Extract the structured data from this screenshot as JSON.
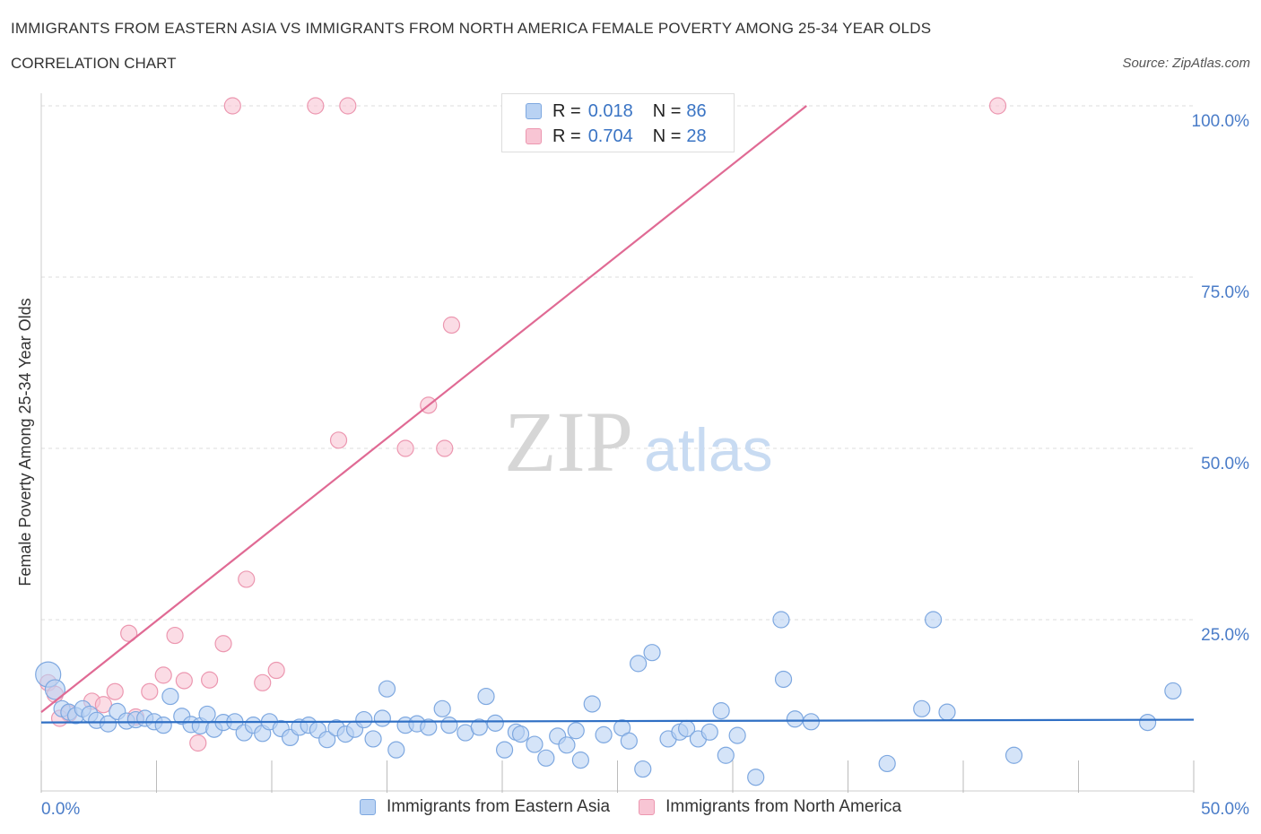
{
  "header": {
    "title": "IMMIGRANTS FROM EASTERN ASIA VS IMMIGRANTS FROM NORTH AMERICA FEMALE POVERTY AMONG 25-34 YEAR OLDS",
    "subtitle": "CORRELATION CHART",
    "source": "Source: ZipAtlas.com"
  },
  "watermark": {
    "zip": "ZIP",
    "atlas": "atlas"
  },
  "colors": {
    "blue_fill": "#b9d2f3",
    "blue_stroke": "#7ea8e0",
    "blue_line": "#2f6fc4",
    "pink_fill": "#f8c5d4",
    "pink_stroke": "#ec97b0",
    "pink_line": "#e06a94",
    "axis_text": "#4a7cc8",
    "grid": "#dddddd"
  },
  "legend": {
    "rows": [
      {
        "r_label": "R = ",
        "r_value": "0.018",
        "n_label": "N = ",
        "n_value": "86"
      },
      {
        "r_label": "R = ",
        "r_value": "0.704",
        "n_label": "N = ",
        "n_value": "28"
      }
    ]
  },
  "bottom_legend": {
    "items": [
      "Immigrants from Eastern Asia",
      "Immigrants from North America"
    ]
  },
  "chart_data": {
    "type": "scatter",
    "xlabel": "",
    "ylabel": "Female Poverty Among 25-34 Year Olds",
    "x_tick_labels": [
      "0.0%",
      "50.0%"
    ],
    "y_tick_labels": [
      "100.0%",
      "75.0%",
      "50.0%",
      "25.0%"
    ],
    "y_ticks": [
      100,
      75,
      50,
      25
    ],
    "xlim": [
      0,
      50
    ],
    "ylim": [
      0,
      100
    ],
    "grid": true,
    "legend_position": "top-center",
    "series": [
      {
        "name": "Immigrants from Eastern Asia",
        "trend": {
          "x": [
            0,
            50
          ],
          "y": [
            10.0,
            10.4
          ]
        },
        "points": [
          [
            0.3,
            17.0,
            14
          ],
          [
            0.6,
            14.8,
            11
          ],
          [
            0.9,
            12.0,
            9
          ],
          [
            1.2,
            11.5,
            9
          ],
          [
            1.5,
            11.0,
            9
          ],
          [
            1.8,
            12.0,
            9
          ],
          [
            2.1,
            11.2,
            9
          ],
          [
            2.4,
            10.3,
            9
          ],
          [
            2.9,
            9.8,
            9
          ],
          [
            3.3,
            11.6,
            9
          ],
          [
            3.7,
            10.2,
            9
          ],
          [
            4.1,
            10.4,
            9
          ],
          [
            4.5,
            10.6,
            9
          ],
          [
            4.9,
            10.1,
            9
          ],
          [
            5.3,
            9.6,
            9
          ],
          [
            5.6,
            13.8,
            9
          ],
          [
            6.1,
            10.9,
            9
          ],
          [
            6.5,
            9.7,
            9
          ],
          [
            6.9,
            9.5,
            9
          ],
          [
            7.2,
            11.2,
            9
          ],
          [
            7.5,
            9.0,
            9
          ],
          [
            7.9,
            10.0,
            9
          ],
          [
            8.4,
            10.1,
            9
          ],
          [
            8.8,
            8.5,
            9
          ],
          [
            9.2,
            9.6,
            9
          ],
          [
            9.6,
            8.4,
            9
          ],
          [
            9.9,
            10.1,
            9
          ],
          [
            10.4,
            9.1,
            9
          ],
          [
            10.8,
            7.8,
            9
          ],
          [
            11.2,
            9.3,
            9
          ],
          [
            11.6,
            9.6,
            9
          ],
          [
            12.0,
            8.9,
            9
          ],
          [
            12.4,
            7.5,
            9
          ],
          [
            12.8,
            9.2,
            9
          ],
          [
            13.2,
            8.3,
            9
          ],
          [
            13.6,
            9.0,
            9
          ],
          [
            14.0,
            10.4,
            9
          ],
          [
            14.4,
            7.6,
            9
          ],
          [
            14.8,
            10.6,
            9
          ],
          [
            15.0,
            14.9,
            9
          ],
          [
            15.4,
            6.0,
            9
          ],
          [
            15.8,
            9.6,
            9
          ],
          [
            16.3,
            9.8,
            9
          ],
          [
            16.8,
            9.3,
            9
          ],
          [
            17.4,
            12.0,
            9
          ],
          [
            17.7,
            9.6,
            9
          ],
          [
            18.4,
            8.5,
            9
          ],
          [
            19.0,
            9.3,
            9
          ],
          [
            19.3,
            13.8,
            9
          ],
          [
            19.7,
            9.9,
            9
          ],
          [
            20.1,
            6.0,
            9
          ],
          [
            20.6,
            8.6,
            9
          ],
          [
            20.8,
            8.3,
            9
          ],
          [
            21.4,
            6.8,
            9
          ],
          [
            21.9,
            4.8,
            9
          ],
          [
            22.4,
            8.0,
            9
          ],
          [
            22.8,
            6.7,
            9
          ],
          [
            23.2,
            8.8,
            9
          ],
          [
            23.4,
            4.5,
            9
          ],
          [
            23.9,
            12.7,
            9
          ],
          [
            24.4,
            8.2,
            9
          ],
          [
            25.2,
            9.2,
            9
          ],
          [
            25.5,
            7.3,
            9
          ],
          [
            25.9,
            18.6,
            9
          ],
          [
            26.1,
            3.2,
            9
          ],
          [
            26.5,
            20.2,
            9
          ],
          [
            27.2,
            7.6,
            9
          ],
          [
            27.7,
            8.6,
            9
          ],
          [
            28.0,
            9.1,
            9
          ],
          [
            28.5,
            7.6,
            9
          ],
          [
            29.0,
            8.6,
            9
          ],
          [
            29.5,
            11.7,
            9
          ],
          [
            29.7,
            5.2,
            9
          ],
          [
            30.2,
            8.1,
            9
          ],
          [
            31.0,
            2.0,
            9
          ],
          [
            32.1,
            25.0,
            9
          ],
          [
            32.2,
            16.3,
            9
          ],
          [
            32.7,
            10.5,
            9
          ],
          [
            33.4,
            10.1,
            9
          ],
          [
            36.7,
            4.0,
            9
          ],
          [
            38.2,
            12.0,
            9
          ],
          [
            38.7,
            25.0,
            9
          ],
          [
            39.3,
            11.5,
            9
          ],
          [
            42.2,
            5.2,
            9
          ],
          [
            48.0,
            10.0,
            9
          ],
          [
            49.1,
            14.6,
            9
          ]
        ]
      },
      {
        "name": "Immigrants from North America",
        "trend": {
          "x": [
            0,
            33.2
          ],
          "y": [
            11.5,
            100
          ]
        },
        "points": [
          [
            8.3,
            100,
            9
          ],
          [
            11.9,
            100,
            9
          ],
          [
            13.3,
            100,
            9
          ],
          [
            41.5,
            100,
            9
          ],
          [
            17.8,
            68.0,
            9
          ],
          [
            16.8,
            56.3,
            9
          ],
          [
            12.9,
            51.2,
            9
          ],
          [
            15.8,
            50.0,
            9
          ],
          [
            17.5,
            50.0,
            9
          ],
          [
            8.9,
            30.9,
            9
          ],
          [
            3.8,
            23.0,
            9
          ],
          [
            5.8,
            22.7,
            9
          ],
          [
            7.9,
            21.5,
            9
          ],
          [
            5.3,
            16.9,
            9
          ],
          [
            6.2,
            16.1,
            9
          ],
          [
            7.3,
            16.2,
            9
          ],
          [
            10.2,
            17.6,
            9
          ],
          [
            9.6,
            15.8,
            9
          ],
          [
            0.3,
            15.8,
            9
          ],
          [
            0.6,
            14.1,
            9
          ],
          [
            3.2,
            14.5,
            9
          ],
          [
            4.7,
            14.5,
            9
          ],
          [
            2.2,
            13.1,
            9
          ],
          [
            2.7,
            12.6,
            9
          ],
          [
            1.2,
            11.3,
            9
          ],
          [
            0.8,
            10.6,
            9
          ],
          [
            4.1,
            10.8,
            9
          ],
          [
            6.8,
            7.0,
            9
          ]
        ]
      }
    ]
  }
}
